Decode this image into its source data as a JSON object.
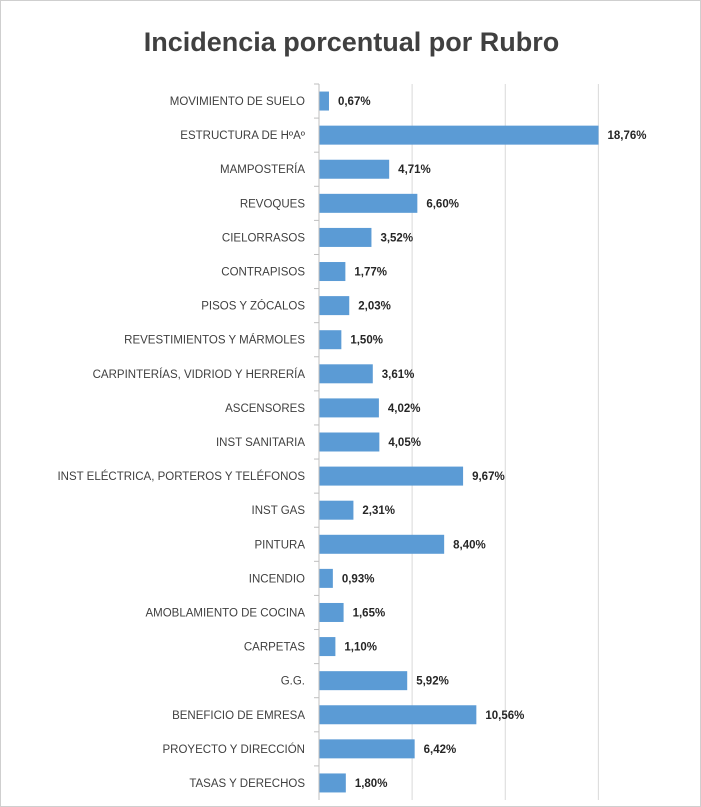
{
  "chart_data": {
    "type": "bar",
    "orientation": "horizontal",
    "title": "Incidencia porcentual por Rubro",
    "categories": [
      "MOVIMIENTO DE SUELO",
      "ESTRUCTURA DE HºAº",
      "MAMPOSTERÍA",
      "REVOQUES",
      "CIELORRASOS",
      "CONTRAPISOS",
      "PISOS Y ZÓCALOS",
      "REVESTIMIENTOS Y MÁRMOLES",
      "CARPINTERÍAS, VIDRIOD Y HERRERÍA",
      "ASCENSORES",
      "INST SANITARIA",
      "INST ELÉCTRICA, PORTEROS Y TELÉFONOS",
      "INST GAS",
      "PINTURA",
      "INCENDIO",
      "AMOBLAMIENTO DE COCINA",
      "CARPETAS",
      "G.G.",
      "BENEFICIO DE EMRESA",
      "PROYECTO Y DIRECCIÓN",
      "TASAS Y DERECHOS"
    ],
    "values": [
      0.67,
      18.76,
      4.71,
      6.6,
      3.52,
      1.77,
      2.03,
      1.5,
      3.61,
      4.02,
      4.05,
      9.67,
      2.31,
      8.4,
      0.93,
      1.65,
      1.1,
      5.92,
      10.56,
      6.42,
      1.8
    ],
    "data_labels": [
      "0,67%",
      "18,76%",
      "4,71%",
      "6,60%",
      "3,52%",
      "1,77%",
      "2,03%",
      "1,50%",
      "3,61%",
      "4,02%",
      "4,05%",
      "9,67%",
      "2,31%",
      "8,40%",
      "0,93%",
      "1,65%",
      "1,10%",
      "5,92%",
      "10,56%",
      "6,42%",
      "1,80%"
    ],
    "xlim": [
      0,
      20
    ],
    "grid": true,
    "legend": "none",
    "bar_color": "#5b9bd5"
  }
}
